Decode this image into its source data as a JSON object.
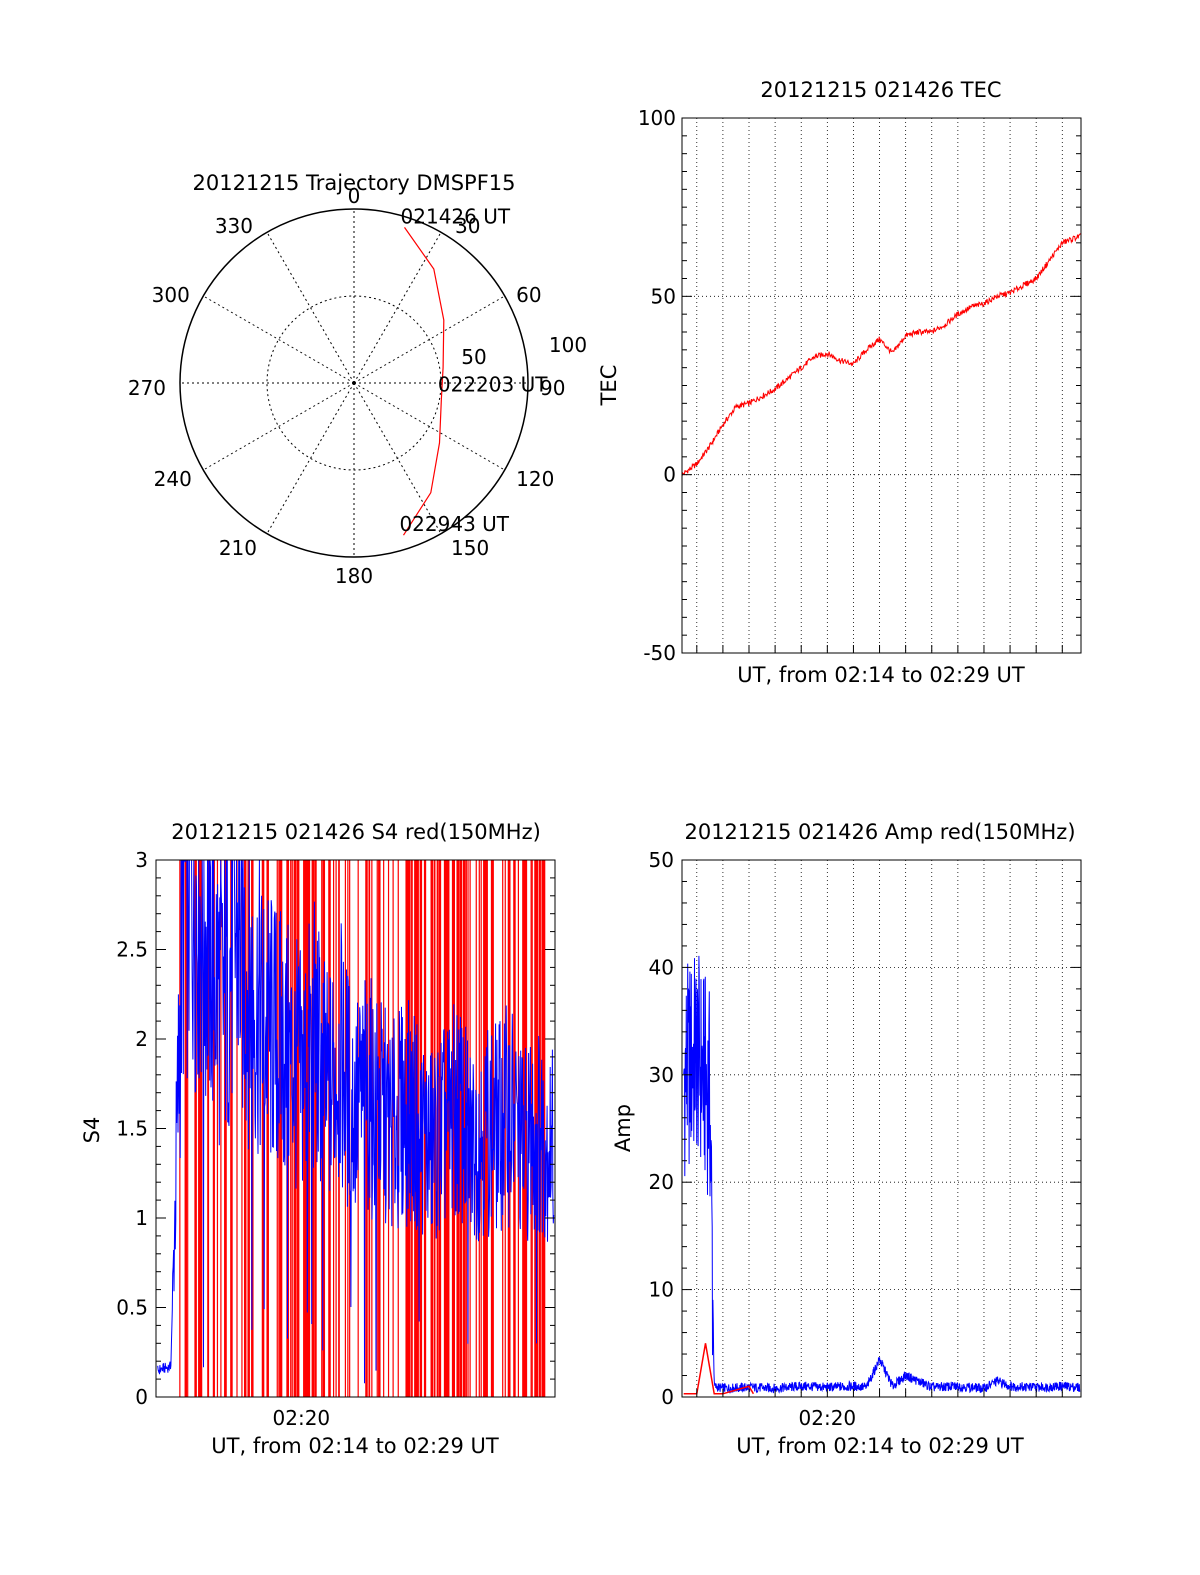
{
  "chart_data": [
    {
      "type": "polar",
      "title": "20121215 Trajectory DMSPF15",
      "angle_labels": [
        "0",
        "30",
        "60",
        "90",
        "120",
        "150",
        "180",
        "210",
        "240",
        "270",
        "300",
        "330"
      ],
      "radius_labels": [
        "50",
        "100"
      ],
      "rlim": [
        0,
        100
      ],
      "grid": true,
      "series": [
        {
          "color": "#ff0000",
          "points": [
            {
              "az": 18,
              "r": 94
            },
            {
              "az": 35,
              "r": 80
            },
            {
              "az": 55,
              "r": 63
            },
            {
              "az": 80,
              "r": 52
            },
            {
              "az": 100,
              "r": 51
            },
            {
              "az": 125,
              "r": 60
            },
            {
              "az": 145,
              "r": 77
            },
            {
              "az": 162,
              "r": 92
            }
          ]
        }
      ],
      "annotations": [
        {
          "text": "021426 UT",
          "az": 18,
          "r": 94
        },
        {
          "text": "022203 UT",
          "az": 98,
          "r": 51
        },
        {
          "text": "022943 UT",
          "az": 162,
          "r": 92
        }
      ]
    },
    {
      "type": "line",
      "title": "20121215 021426 TEC",
      "xlabel": "UT, from 02:14 to 02:29 UT",
      "ylabel": "TEC",
      "xlim": [
        "02:14:26",
        "02:29:43"
      ],
      "ylim": [
        -50,
        100
      ],
      "yticks": [
        "-50",
        "0",
        "50",
        "100"
      ],
      "grid": true,
      "series": [
        {
          "color": "#ff0000",
          "x": [
            "02:14:26",
            "02:15:00",
            "02:15:30",
            "02:16:00",
            "02:16:30",
            "02:17:00",
            "02:17:30",
            "02:18:00",
            "02:18:30",
            "02:19:00",
            "02:19:30",
            "02:20:00",
            "02:20:30",
            "02:21:00",
            "02:21:30",
            "02:22:00",
            "02:22:30",
            "02:23:00",
            "02:23:30",
            "02:24:00",
            "02:24:30",
            "02:25:00",
            "02:25:30",
            "02:26:00",
            "02:26:30",
            "02:27:00",
            "02:27:30",
            "02:28:00",
            "02:28:30",
            "02:29:00",
            "02:29:43"
          ],
          "values": [
            0,
            3,
            8,
            14,
            19,
            20,
            22,
            24,
            27,
            30,
            33,
            34,
            32,
            31,
            35,
            38,
            34,
            39,
            40,
            40,
            42,
            45,
            47,
            48,
            50,
            51,
            53,
            55,
            60,
            65,
            67
          ]
        }
      ]
    },
    {
      "type": "line",
      "title": "20121215 021426 S4 red(150MHz)",
      "xlabel": "UT, from 02:14 to 02:29 UT",
      "ylabel": "S4",
      "xlim": [
        "02:14:26",
        "02:29:43"
      ],
      "ylim": [
        0,
        3
      ],
      "xticks": [
        "02:20"
      ],
      "yticks": [
        "0",
        "0.5",
        "1",
        "1.5",
        "2",
        "2.5",
        "3"
      ],
      "series": [
        {
          "color": "#ff0000",
          "x": [
            "02:14:40",
            "02:15:00",
            "02:15:30",
            "02:16:00",
            "02:16:30",
            "02:17:00",
            "02:17:30",
            "02:18:00",
            "02:18:30",
            "02:19:00",
            "02:19:30",
            "02:20:00",
            "02:20:30",
            "02:21:00",
            "02:21:30",
            "02:22:00",
            "02:22:30",
            "02:23:00",
            "02:23:30",
            "02:24:00",
            "02:24:30",
            "02:25:00",
            "02:25:30",
            "02:26:00",
            "02:26:30",
            "02:27:00",
            "02:27:30",
            "02:28:00",
            "02:28:30",
            "02:29:00",
            "02:29:30"
          ],
          "values": [
            3,
            3,
            3,
            3,
            3,
            3,
            3,
            3,
            3,
            3,
            3,
            3,
            3,
            3,
            3,
            3,
            3,
            3,
            3,
            3,
            3,
            3,
            3,
            3,
            3,
            3,
            3,
            3,
            3,
            3,
            3
          ]
        },
        {
          "color": "#0000ff",
          "x": [
            "02:14:30",
            "02:15:00",
            "02:15:30",
            "02:16:00",
            "02:16:30",
            "02:17:00",
            "02:17:30",
            "02:18:00",
            "02:18:30",
            "02:19:00",
            "02:19:30",
            "02:20:00",
            "02:20:30",
            "02:21:00",
            "02:21:30",
            "02:22:00",
            "02:22:30",
            "02:23:00",
            "02:23:30",
            "02:24:00",
            "02:24:30",
            "02:25:00",
            "02:25:30",
            "02:26:00",
            "02:26:30",
            "02:27:00",
            "02:27:30",
            "02:28:00",
            "02:28:30",
            "02:29:00",
            "02:29:40"
          ],
          "values": [
            0.15,
            0.17,
            2.9,
            2.8,
            2.5,
            2.2,
            2.6,
            2.3,
            2.1,
            2.0,
            1.9,
            1.8,
            2.0,
            1.7,
            1.9,
            1.6,
            1.7,
            1.6,
            1.5,
            1.6,
            1.5,
            1.4,
            1.5,
            1.6,
            1.4,
            1.5,
            1.5,
            1.6,
            1.4,
            1.5,
            1.4
          ]
        }
      ]
    },
    {
      "type": "line",
      "title": "20121215 021426 Amp red(150MHz)",
      "xlabel": "UT, from 02:14 to 02:29 UT",
      "ylabel": "Amp",
      "xlim": [
        "02:14:26",
        "02:29:43"
      ],
      "ylim": [
        0,
        50
      ],
      "xticks": [
        "02:20"
      ],
      "yticks": [
        "0",
        "10",
        "20",
        "30",
        "40",
        "50"
      ],
      "grid": true,
      "series": [
        {
          "color": "#ff0000",
          "x": [
            "02:14:30",
            "02:15:00",
            "02:15:20",
            "02:15:40",
            "02:16:00",
            "02:17:00",
            "02:17:10"
          ],
          "values": [
            0.3,
            0.3,
            5,
            0.3,
            0.3,
            1,
            0.3
          ]
        },
        {
          "color": "#0000ff",
          "x": [
            "02:14:30",
            "02:15:00",
            "02:15:30",
            "02:15:40",
            "02:16:00",
            "02:17:00",
            "02:18:00",
            "02:19:00",
            "02:20:00",
            "02:21:00",
            "02:21:30",
            "02:22:00",
            "02:22:30",
            "02:23:00",
            "02:24:00",
            "02:25:00",
            "02:26:00",
            "02:26:30",
            "02:27:00",
            "02:28:00",
            "02:29:00",
            "02:29:40"
          ],
          "values": [
            30,
            32,
            28,
            1,
            0.8,
            0.9,
            0.8,
            1,
            0.9,
            1,
            0.9,
            3.5,
            1,
            2,
            0.9,
            1,
            0.8,
            1.5,
            1,
            0.9,
            1,
            0.9
          ]
        }
      ]
    }
  ]
}
